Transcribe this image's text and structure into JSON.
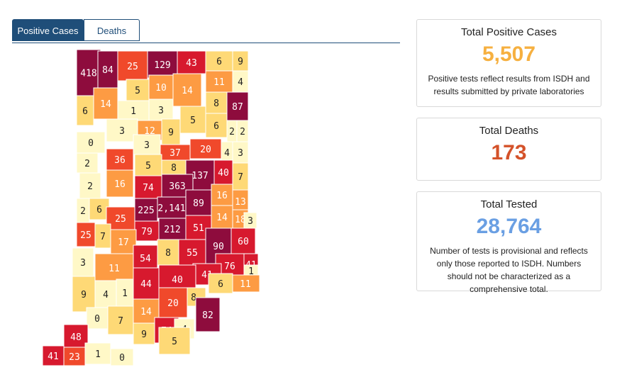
{
  "tabs": [
    {
      "label": "Positive Cases",
      "active": true
    },
    {
      "label": "Deaths",
      "active": false
    }
  ],
  "cards": [
    {
      "title": "Total Positive Cases",
      "value": "5,507",
      "color": "#f6b040",
      "note": "Positive tests reflect results from ISDH and results submitted by private laboratories"
    },
    {
      "title": "Total Deaths",
      "value": "173",
      "color": "#d4522a",
      "note": ""
    },
    {
      "title": "Total Tested",
      "value": "28,764",
      "color": "#6a9fe3",
      "note": "Number of tests is provisional and reflects only those reported to ISDH. Numbers should not be characterized as a comprehensive total."
    }
  ],
  "map": {
    "colors": {
      "1": "#fff8c7",
      "2": "#fed976",
      "3": "#fd9b43",
      "4": "#f0492b",
      "5": "#d7192e",
      "6": "#8e0c3d"
    },
    "county_counts": [
      "418",
      "84",
      "25",
      "129",
      "43",
      "6",
      "9",
      "5",
      "10",
      "14",
      "11",
      "4",
      "6",
      "14",
      "1",
      "3",
      "8",
      "87",
      "3",
      "12",
      "9",
      "5",
      "6",
      "2",
      "2",
      "0",
      "3",
      "37",
      "20",
      "4",
      "3",
      "2",
      "36",
      "5",
      "8",
      "137",
      "40",
      "7",
      "2",
      "16",
      "74",
      "363",
      "16",
      "13",
      "2",
      "6",
      "225",
      "2,141",
      "89",
      "14",
      "18",
      "3",
      "25",
      "25",
      "79",
      "212",
      "51",
      "7",
      "17",
      "90",
      "60",
      "3",
      "11",
      "54",
      "8",
      "55",
      "76",
      "41",
      "41",
      "40",
      "1",
      "9",
      "4",
      "1",
      "44",
      "11",
      "6",
      "8",
      "14",
      "20",
      "82",
      "0",
      "7",
      "9",
      "74",
      "4",
      "48",
      "5",
      "41",
      "23",
      "1",
      "0"
    ]
  }
}
